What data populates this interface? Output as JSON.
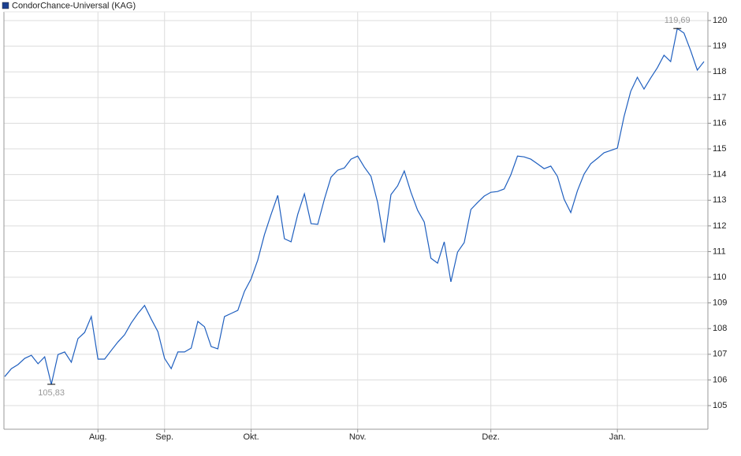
{
  "chart_data": {
    "type": "line",
    "categories": [
      null,
      null,
      null,
      null,
      null,
      null,
      null,
      null,
      null,
      null,
      null,
      null,
      null,
      null,
      "Aug.",
      null,
      null,
      null,
      null,
      null,
      null,
      null,
      null,
      null,
      "Sep.",
      null,
      null,
      null,
      null,
      null,
      null,
      null,
      null,
      null,
      null,
      null,
      null,
      "Okt.",
      null,
      null,
      null,
      null,
      null,
      null,
      null,
      null,
      null,
      null,
      null,
      null,
      null,
      null,
      null,
      "Nov.",
      null,
      null,
      null,
      null,
      null,
      null,
      null,
      null,
      null,
      null,
      null,
      null,
      null,
      null,
      null,
      null,
      null,
      null,
      null,
      "Dez.",
      null,
      null,
      null,
      null,
      null,
      null,
      null,
      null,
      null,
      null,
      null,
      null,
      null,
      null,
      null,
      null,
      null,
      null,
      "Jan.",
      null,
      null,
      null,
      null,
      null,
      null,
      null,
      null,
      null,
      null,
      null,
      null,
      null
    ],
    "series": [
      {
        "name": "CondorChance-Universal (KAG)",
        "color": "#1f5fbf",
        "legend_color": "#1a3f8f",
        "values": [
          106.13,
          106.44,
          106.6,
          106.84,
          106.96,
          106.63,
          106.9,
          105.83,
          106.99,
          107.09,
          106.69,
          107.61,
          107.85,
          108.47,
          106.81,
          106.81,
          107.15,
          107.48,
          107.76,
          108.22,
          108.59,
          108.9,
          108.37,
          107.88,
          106.84,
          106.44,
          107.09,
          107.09,
          107.24,
          108.28,
          108.07,
          107.3,
          107.21,
          108.47,
          108.59,
          108.71,
          109.45,
          109.94,
          110.67,
          111.66,
          112.45,
          113.19,
          111.5,
          111.38,
          112.45,
          113.25,
          112.09,
          112.06,
          113.04,
          113.9,
          114.17,
          114.26,
          114.6,
          114.72,
          114.29,
          113.93,
          112.91,
          111.35,
          113.22,
          113.56,
          114.14,
          113.31,
          112.61,
          112.15,
          110.74,
          110.55,
          111.38,
          109.82,
          110.98,
          111.35,
          112.64,
          112.91,
          113.16,
          113.31,
          113.34,
          113.44,
          113.99,
          114.72,
          114.69,
          114.6,
          114.42,
          114.23,
          114.33,
          113.93,
          113.04,
          112.52,
          113.37,
          114.02,
          114.42,
          114.63,
          114.85,
          114.94,
          115.03,
          116.26,
          117.24,
          117.79,
          117.33,
          117.76,
          118.16,
          118.65,
          118.4,
          119.69,
          119.51,
          118.83,
          118.07,
          118.4
        ],
        "value_labels": [
          null,
          null,
          null,
          null,
          null,
          null,
          null,
          "105,83",
          null,
          null,
          null,
          null,
          null,
          null,
          null,
          null,
          null,
          null,
          null,
          null,
          null,
          null,
          null,
          null,
          null,
          null,
          null,
          null,
          null,
          null,
          null,
          null,
          null,
          null,
          null,
          null,
          null,
          null,
          null,
          null,
          null,
          null,
          null,
          null,
          null,
          null,
          null,
          null,
          null,
          null,
          null,
          null,
          null,
          null,
          null,
          null,
          null,
          null,
          null,
          null,
          null,
          null,
          null,
          null,
          null,
          null,
          null,
          null,
          null,
          null,
          null,
          null,
          null,
          null,
          null,
          null,
          null,
          null,
          null,
          null,
          null,
          null,
          null,
          null,
          null,
          null,
          null,
          null,
          null,
          null,
          null,
          null,
          null,
          null,
          null,
          null,
          null,
          null,
          null,
          null,
          null,
          "119,69",
          null,
          null,
          null,
          null
        ]
      }
    ],
    "ylim": [
      104.08,
      120.34
    ],
    "yticks": [
      105,
      106,
      107,
      108,
      109,
      110,
      111,
      112,
      113,
      114,
      115,
      116,
      117,
      118,
      119,
      120
    ],
    "grid": true
  }
}
